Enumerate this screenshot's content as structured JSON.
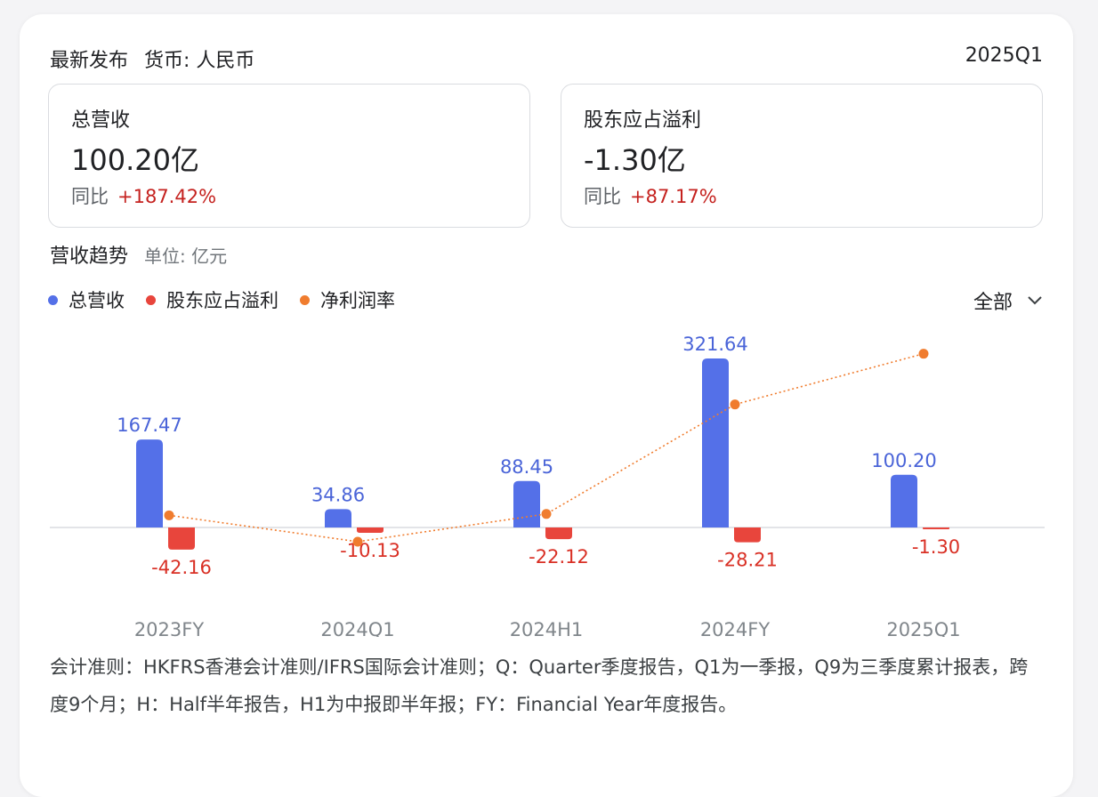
{
  "header": {
    "title": "最新发布",
    "currency": "货币: 人民币",
    "period": "2025Q1"
  },
  "metrics": [
    {
      "label": "总营收",
      "value": "100.20亿",
      "yoy_label": "同比",
      "yoy": "+187.42%"
    },
    {
      "label": "股东应占溢利",
      "value": "-1.30亿",
      "yoy_label": "同比",
      "yoy": "+87.17%"
    }
  ],
  "trend": {
    "title": "营收趋势",
    "unit": "单位: 亿元",
    "selector": "全部"
  },
  "legend": [
    {
      "name": "总营收",
      "color": "#5470e8"
    },
    {
      "name": "股东应占溢利",
      "color": "#e8453c"
    },
    {
      "name": "净利润率",
      "color": "#f07c2e"
    }
  ],
  "chart_data": {
    "type": "bar",
    "categories": [
      "2023FY",
      "2024Q1",
      "2024H1",
      "2024FY",
      "2025Q1"
    ],
    "series": [
      {
        "name": "总营收",
        "values": [
          167.47,
          34.86,
          88.45,
          321.64,
          100.2
        ],
        "labels": [
          "167.47",
          "34.86",
          "88.45",
          "321.64",
          "100.20"
        ]
      },
      {
        "name": "股东应占溢利",
        "values": [
          -42.16,
          -10.13,
          -22.12,
          -28.21,
          -1.3
        ],
        "labels": [
          "-42.16",
          "-10.13",
          "-22.12",
          "-28.21",
          "-1.30"
        ]
      },
      {
        "name": "净利润率",
        "type": "line",
        "values": [
          -25.2,
          -29.1,
          -25.0,
          -8.8,
          -1.3
        ]
      }
    ],
    "colors": {
      "revenue": "#5470e8",
      "profit": "#e8453c",
      "margin": "#f07c2e",
      "revenue_label": "#4a64d8",
      "profit_label": "#d93025",
      "axis_label": "#80868b",
      "baseline": "#dadce0"
    }
  },
  "footnote": "会计准则：HKFRS香港会计准则/IFRS国际会计准则；Q：Quarter季度报告，Q1为一季报，Q9为三季度累计报表，跨度9个月；H：Half半年报告，H1为中报即半年报；FY：Financial Year年度报告。"
}
